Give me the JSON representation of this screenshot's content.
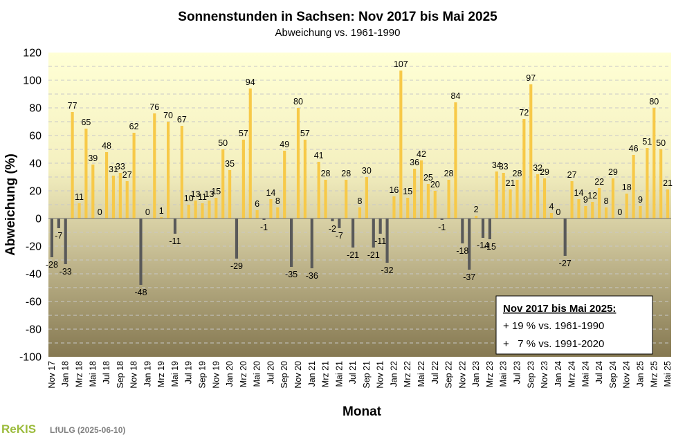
{
  "header": {
    "title": "Sonnenstunden  in Sachsen: Nov 2017 bis Mai 2025",
    "subtitle": "Abweichung vs. 1961-1990"
  },
  "chart_data": {
    "type": "bar",
    "title": "Sonnenstunden  in Sachsen: Nov 2017 bis Mai 2025",
    "subtitle": "Abweichung vs. 1961-1990",
    "xlabel": "Monat",
    "ylabel": "Abweichung (%)",
    "ylim": [
      -100,
      120
    ],
    "yticks": [
      -100,
      -80,
      -60,
      -40,
      -20,
      0,
      20,
      40,
      60,
      80,
      100,
      120
    ],
    "grid": "horizontal-dashed",
    "categories": [
      "Nov 17",
      "Dez 17",
      "Jan 18",
      "Feb 18",
      "Mrz 18",
      "Apr 18",
      "Mai 18",
      "Jun 18",
      "Jul 18",
      "Aug 18",
      "Sep 18",
      "Okt 18",
      "Nov 18",
      "Dez 18",
      "Jan 19",
      "Feb 19",
      "Mrz 19",
      "Apr 19",
      "Mai 19",
      "Jun 19",
      "Jul 19",
      "Aug 19",
      "Sep 19",
      "Okt 19",
      "Nov 19",
      "Dez 19",
      "Jan 20",
      "Feb 20",
      "Mrz 20",
      "Apr 20",
      "Mai 20",
      "Jun 20",
      "Jul 20",
      "Aug 20",
      "Sep 20",
      "Okt 20",
      "Nov 20",
      "Dez 20",
      "Jan 21",
      "Feb 21",
      "Mrz 21",
      "Apr 21",
      "Mai 21",
      "Jun 21",
      "Jul 21",
      "Aug 21",
      "Sep 21",
      "Okt 21",
      "Nov 21",
      "Dez 21",
      "Jan 22",
      "Feb 22",
      "Mrz 22",
      "Apr 22",
      "Mai 22",
      "Jun 22",
      "Jul 22",
      "Aug 22",
      "Sep 22",
      "Okt 22",
      "Nov 22",
      "Dez 22",
      "Jan 23",
      "Feb 23",
      "Mrz 23",
      "Apr 23",
      "Mai 23",
      "Jun 23",
      "Jul 23",
      "Aug 23",
      "Sep 23",
      "Okt 23",
      "Nov 23",
      "Dez 23",
      "Jan 24",
      "Feb 24",
      "Mrz 24",
      "Apr 24",
      "Mai 24",
      "Jun 24",
      "Jul 24",
      "Aug 24",
      "Sep 24",
      "Okt 24",
      "Nov 24",
      "Dez 24",
      "Jan 25",
      "Feb 25",
      "Mrz 25",
      "Apr 25",
      "Mai 25"
    ],
    "xtick_labels": [
      "Nov 17",
      "Jan 18",
      "Mrz 18",
      "Mai 18",
      "Jul 18",
      "Sep 18",
      "Nov 18",
      "Jan 19",
      "Mrz 19",
      "Mai 19",
      "Jul 19",
      "Sep 19",
      "Nov 19",
      "Jan 20",
      "Mrz 20",
      "Mai 20",
      "Jul 20",
      "Sep 20",
      "Nov 20",
      "Jan 21",
      "Mrz 21",
      "Mai 21",
      "Jul 21",
      "Sep 21",
      "Nov 21",
      "Jan 22",
      "Mrz 22",
      "Mai 22",
      "Jul 22",
      "Sep 22",
      "Nov 22",
      "Jan 23",
      "Mrz 23",
      "Mai 23",
      "Jul 23",
      "Sep 23",
      "Nov 23",
      "Jan 24",
      "Mrz 24",
      "Mai 24",
      "Jul 24",
      "Sep 24",
      "Nov 24",
      "Jan 25",
      "Mrz 25",
      "Mai 25"
    ],
    "values": [
      -28,
      -7,
      -33,
      77,
      11,
      65,
      39,
      0,
      48,
      31,
      33,
      27,
      62,
      -48,
      0,
      76,
      1,
      70,
      -11,
      67,
      10,
      13,
      11,
      13,
      15,
      50,
      35,
      -29,
      57,
      94,
      6,
      -1,
      14,
      8,
      49,
      -35,
      80,
      57,
      -36,
      41,
      28,
      -2,
      -7,
      28,
      -21,
      8,
      30,
      -21,
      -11,
      -32,
      16,
      107,
      15,
      36,
      42,
      25,
      20,
      -1,
      28,
      84,
      -18,
      -37,
      2,
      -14,
      -15,
      34,
      33,
      21,
      28,
      72,
      97,
      32,
      29,
      4,
      0,
      -27,
      27,
      14,
      9,
      12,
      22,
      8,
      29,
      0,
      18,
      46,
      9,
      51,
      80,
      50,
      21
    ],
    "colors": {
      "positive": "#f7c948",
      "negative": "#595959",
      "plot_top": "#ffffd5",
      "plot_bottom": "#8a7d55",
      "grid": "#c8c8c8"
    }
  },
  "summary_box": {
    "heading": "Nov 2017 bis Mai 2025:",
    "line1": "+ 19 % vs. 1961-1990",
    "line2": "+   7 % vs. 1991-2020"
  },
  "footer": {
    "logo": "ReKIS",
    "org": "LfULG (2025-06-10)"
  }
}
